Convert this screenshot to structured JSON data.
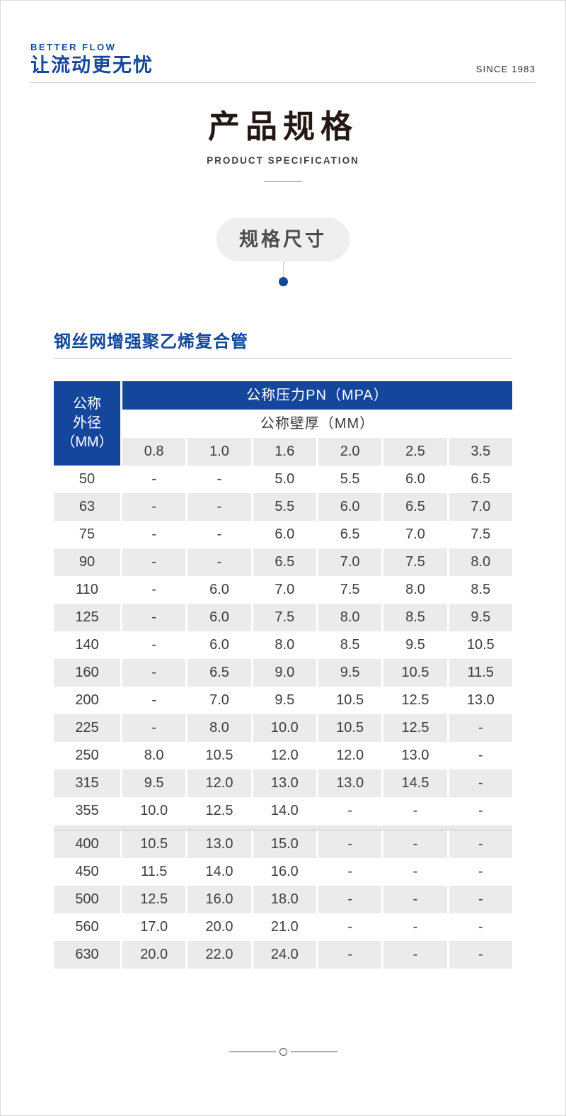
{
  "brand": {
    "name_en": "BETTER FLOW",
    "slogan_cn": "让流动更无忧",
    "since": "SINCE 1983"
  },
  "title": {
    "heading_cn": "产品规格",
    "heading_en": "PRODUCT SPECIFICATION"
  },
  "badge": {
    "label": "规格尺寸"
  },
  "section": {
    "heading": "钢丝网增强聚乙烯复合管"
  },
  "table": {
    "corner_header": "公称\n外径\n（MM）",
    "pressure_header": "公称压力PN（MPA）",
    "thickness_header": "公称壁厚（MM）",
    "pressure_columns": [
      "0.8",
      "1.0",
      "1.6",
      "2.0",
      "2.5",
      "3.5"
    ],
    "rows": [
      {
        "dn": "50",
        "values": [
          "-",
          "-",
          "5.0",
          "5.5",
          "6.0",
          "6.5"
        ]
      },
      {
        "dn": "63",
        "values": [
          "-",
          "-",
          "5.5",
          "6.0",
          "6.5",
          "7.0"
        ]
      },
      {
        "dn": "75",
        "values": [
          "-",
          "-",
          "6.0",
          "6.5",
          "7.0",
          "7.5"
        ]
      },
      {
        "dn": "90",
        "values": [
          "-",
          "-",
          "6.5",
          "7.0",
          "7.5",
          "8.0"
        ]
      },
      {
        "dn": "110",
        "values": [
          "-",
          "6.0",
          "7.0",
          "7.5",
          "8.0",
          "8.5"
        ]
      },
      {
        "dn": "125",
        "values": [
          "-",
          "6.0",
          "7.5",
          "8.0",
          "8.5",
          "9.5"
        ]
      },
      {
        "dn": "140",
        "values": [
          "-",
          "6.0",
          "8.0",
          "8.5",
          "9.5",
          "10.5"
        ]
      },
      {
        "dn": "160",
        "values": [
          "-",
          "6.5",
          "9.0",
          "9.5",
          "10.5",
          "11.5"
        ]
      },
      {
        "dn": "200",
        "values": [
          "-",
          "7.0",
          "9.5",
          "10.5",
          "12.5",
          "13.0"
        ]
      },
      {
        "dn": "225",
        "values": [
          "-",
          "8.0",
          "10.0",
          "10.5",
          "12.5",
          "-"
        ]
      },
      {
        "dn": "250",
        "values": [
          "8.0",
          "10.5",
          "12.0",
          "12.0",
          "13.0",
          "-"
        ]
      },
      {
        "dn": "315",
        "values": [
          "9.5",
          "12.0",
          "13.0",
          "13.0",
          "14.5",
          "-"
        ]
      },
      {
        "dn": "355",
        "values": [
          "10.0",
          "12.5",
          "14.0",
          "-",
          "-",
          "-"
        ]
      },
      {
        "dn": "400",
        "values": [
          "10.5",
          "13.0",
          "15.0",
          "-",
          "-",
          "-"
        ],
        "divider_above": true
      },
      {
        "dn": "450",
        "values": [
          "11.5",
          "14.0",
          "16.0",
          "-",
          "-",
          "-"
        ]
      },
      {
        "dn": "500",
        "values": [
          "12.5",
          "16.0",
          "18.0",
          "-",
          "-",
          "-"
        ]
      },
      {
        "dn": "560",
        "values": [
          "17.0",
          "20.0",
          "21.0",
          "-",
          "-",
          "-"
        ]
      },
      {
        "dn": "630",
        "values": [
          "20.0",
          "22.0",
          "24.0",
          "-",
          "-",
          "-"
        ]
      }
    ]
  },
  "colors": {
    "accent_blue": "#14479c",
    "table_row_gray": "#ebebeb",
    "heading_dark": "#231815"
  }
}
